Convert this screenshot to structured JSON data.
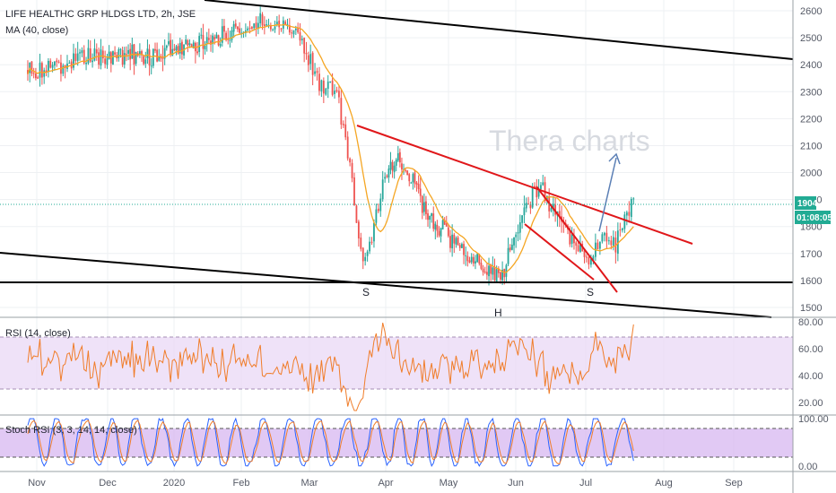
{
  "header": {
    "title": "LIFE HEALTHC GRP HLDGS LTD, 2h, JSE",
    "ma_label": "MA (40, close)"
  },
  "watermark": "Thera charts",
  "pattern_labels": [
    "S",
    "H",
    "S"
  ],
  "price_tag": {
    "price": "1904",
    "countdown": "01:08:05"
  },
  "rsi_label": "RSI (14, close)",
  "stoch_label": "Stoch RSI (3, 3, 14, 14, close)",
  "colors": {
    "candle_up": "#26a69a",
    "candle_down": "#ef5350",
    "ma": "#f5a623",
    "trend_red": "#e0171a",
    "arrow": "#5b7fb5",
    "rsi": "#f07d2a",
    "stoch_k": "#2962ff",
    "stoch_d": "#f07d2a",
    "band": "#ead8f5",
    "price_tag": "#22ab94"
  },
  "chart_data": [
    {
      "type": "candlestick",
      "symbol": "LIFE HEALTHC GRP HLDGS LTD",
      "interval": "2h",
      "exchange": "JSE",
      "x_ticks": [
        "Nov",
        "Dec",
        "2020",
        "Feb",
        "Mar",
        "Apr",
        "May",
        "Jun",
        "Jul",
        "Aug",
        "Sep"
      ],
      "y_ticks": [
        1500,
        1600,
        1700,
        1800,
        1900,
        2000,
        2100,
        2200,
        2300,
        2400,
        2500,
        2600
      ],
      "ylim": [
        1470,
        2640
      ],
      "last_price": 1904,
      "price_path": [
        {
          "x": "Oct 28",
          "y": 2380
        },
        {
          "x": "Nov 15",
          "y": 2410
        },
        {
          "x": "Dec 1",
          "y": 2440
        },
        {
          "x": "Dec 20",
          "y": 2430
        },
        {
          "x": "Jan 10",
          "y": 2480
        },
        {
          "x": "Jan 25",
          "y": 2510
        },
        {
          "x": "Feb 10",
          "y": 2560
        },
        {
          "x": "Feb 25",
          "y": 2530
        },
        {
          "x": "Mar 5",
          "y": 2330
        },
        {
          "x": "Mar 12",
          "y": 2310
        },
        {
          "x": "Mar 18",
          "y": 1990
        },
        {
          "x": "Mar 23",
          "y": 1640
        },
        {
          "x": "Apr 1",
          "y": 1980
        },
        {
          "x": "Apr 8",
          "y": 2050
        },
        {
          "x": "Apr 22",
          "y": 1830
        },
        {
          "x": "May 12",
          "y": 1680
        },
        {
          "x": "May 26",
          "y": 1600
        },
        {
          "x": "Jun 5",
          "y": 1890
        },
        {
          "x": "Jun 12",
          "y": 1940
        },
        {
          "x": "Jun 24",
          "y": 1760
        },
        {
          "x": "Jul 2",
          "y": 1650
        },
        {
          "x": "Jul 8",
          "y": 1770
        },
        {
          "x": "Jul 13",
          "y": 1730
        },
        {
          "x": "Jul 20",
          "y": 1904
        }
      ],
      "series": [
        {
          "name": "MA (40, close)"
        }
      ],
      "drawings": {
        "watermark": "Thera charts",
        "pattern_labels": [
          "S",
          "H",
          "S"
        ],
        "support_level": 1610,
        "descending_trendline": [
          {
            "x": "Mar 20",
            "y": 2195
          },
          {
            "x": "Aug 5",
            "y": 1760
          }
        ],
        "wedge_upper": [
          {
            "x": "Jun 10",
            "y": 1970
          },
          {
            "x": "Jul 4",
            "y": 1580
          }
        ],
        "wedge_lower": [
          {
            "x": "Jun 5",
            "y": 1830
          },
          {
            "x": "Jun 30",
            "y": 1630
          }
        ],
        "target_arrow": [
          {
            "x": "Jul 12",
            "y": 1780
          },
          {
            "x": "Jul 19",
            "y": 2070
          }
        ]
      }
    },
    {
      "type": "line",
      "name": "RSI (14, close)",
      "y_ticks": [
        "80.00",
        "60.00",
        "40.00",
        "20.00"
      ],
      "ylim": [
        12,
        82
      ],
      "bands": [
        30,
        70
      ],
      "last_value": 78
    },
    {
      "type": "line",
      "name": "Stoch RSI (3, 3, 14, 14, close)",
      "y_ticks": [
        "100.00",
        "0.00"
      ],
      "ylim": [
        -8,
        104
      ],
      "bands": [
        20,
        80
      ]
    }
  ]
}
